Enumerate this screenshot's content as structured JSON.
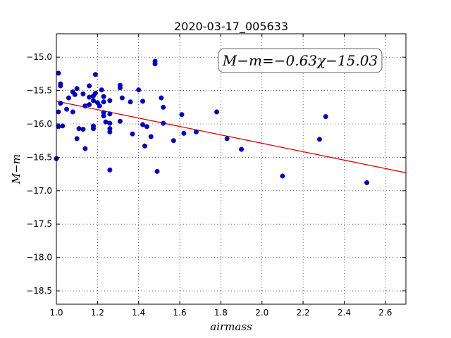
{
  "chart_data": {
    "type": "scatter",
    "title": "2020-03-17_005633",
    "xlabel": "airmass",
    "ylabel": "M−m",
    "xlim": [
      1.0,
      2.7
    ],
    "ylim": [
      -18.7,
      -14.65
    ],
    "y_inverted": true,
    "grid": true,
    "grid_style": "dotted",
    "x_ticks": [
      1.0,
      1.2,
      1.4,
      1.6,
      1.8,
      2.0,
      2.2,
      2.4,
      2.6
    ],
    "x_tick_labels": [
      "1.0",
      "1.2",
      "1.4",
      "1.6",
      "1.8",
      "2.0",
      "2.2",
      "2.4",
      "2.6"
    ],
    "y_ticks": [
      -15.0,
      -15.5,
      -16.0,
      -16.5,
      -17.0,
      -17.5,
      -18.0,
      -18.5
    ],
    "y_tick_labels": [
      "−15.0",
      "−15.5",
      "−16.0",
      "−16.5",
      "−17.0",
      "−17.5",
      "−18.0",
      "−18.5"
    ],
    "annotation": "M−m=−0.63χ−15.03",
    "annotation_placement": "top-right",
    "point_color": "#0000cc",
    "line_color": "#dd0000",
    "fit": {
      "slope": -0.63,
      "intercept": -15.03
    },
    "points": [
      [
        1.0,
        -16.52
      ],
      [
        1.01,
        -16.04
      ],
      [
        1.01,
        -15.82
      ],
      [
        1.01,
        -15.24
      ],
      [
        1.02,
        -15.4
      ],
      [
        1.02,
        -15.43
      ],
      [
        1.02,
        -15.69
      ],
      [
        1.03,
        -16.03
      ],
      [
        1.05,
        -15.78
      ],
      [
        1.06,
        -15.61
      ],
      [
        1.08,
        -15.52
      ],
      [
        1.08,
        -15.82
      ],
      [
        1.09,
        -15.56
      ],
      [
        1.1,
        -16.22
      ],
      [
        1.1,
        -15.47
      ],
      [
        1.11,
        -16.07
      ],
      [
        1.13,
        -15.55
      ],
      [
        1.13,
        -16.08
      ],
      [
        1.14,
        -15.73
      ],
      [
        1.14,
        -16.37
      ],
      [
        1.16,
        -15.43
      ],
      [
        1.16,
        -15.6
      ],
      [
        1.16,
        -15.71
      ],
      [
        1.18,
        -15.58
      ],
      [
        1.18,
        -15.65
      ],
      [
        1.18,
        -16.07
      ],
      [
        1.18,
        -16.03
      ],
      [
        1.19,
        -15.54
      ],
      [
        1.19,
        -15.26
      ],
      [
        1.2,
        -15.68
      ],
      [
        1.21,
        -15.73
      ],
      [
        1.22,
        -15.49
      ],
      [
        1.23,
        -15.67
      ],
      [
        1.23,
        -15.59
      ],
      [
        1.23,
        -15.83
      ],
      [
        1.23,
        -15.88
      ],
      [
        1.24,
        -15.97
      ],
      [
        1.26,
        -15.65
      ],
      [
        1.26,
        -15.85
      ],
      [
        1.26,
        -15.99
      ],
      [
        1.26,
        -16.07
      ],
      [
        1.26,
        -16.12
      ],
      [
        1.26,
        -16.69
      ],
      [
        1.31,
        -15.42
      ],
      [
        1.31,
        -15.46
      ],
      [
        1.31,
        -15.96
      ],
      [
        1.32,
        -15.61
      ],
      [
        1.36,
        -15.67
      ],
      [
        1.37,
        -16.15
      ],
      [
        1.4,
        -15.49
      ],
      [
        1.42,
        -16.01
      ],
      [
        1.42,
        -15.66
      ],
      [
        1.43,
        -16.33
      ],
      [
        1.44,
        -16.04
      ],
      [
        1.46,
        -16.19
      ],
      [
        1.48,
        -15.06
      ],
      [
        1.48,
        -15.1
      ],
      [
        1.49,
        -16.71
      ],
      [
        1.51,
        -15.61
      ],
      [
        1.52,
        -15.75
      ],
      [
        1.52,
        -15.99
      ],
      [
        1.57,
        -16.25
      ],
      [
        1.61,
        -15.86
      ],
      [
        1.62,
        -16.14
      ],
      [
        1.68,
        -16.12
      ],
      [
        1.78,
        -15.82
      ],
      [
        1.83,
        -16.22
      ],
      [
        1.9,
        -16.38
      ],
      [
        2.1,
        -16.78
      ],
      [
        2.28,
        -16.23
      ],
      [
        2.31,
        -15.89
      ],
      [
        2.51,
        -16.88
      ]
    ]
  }
}
